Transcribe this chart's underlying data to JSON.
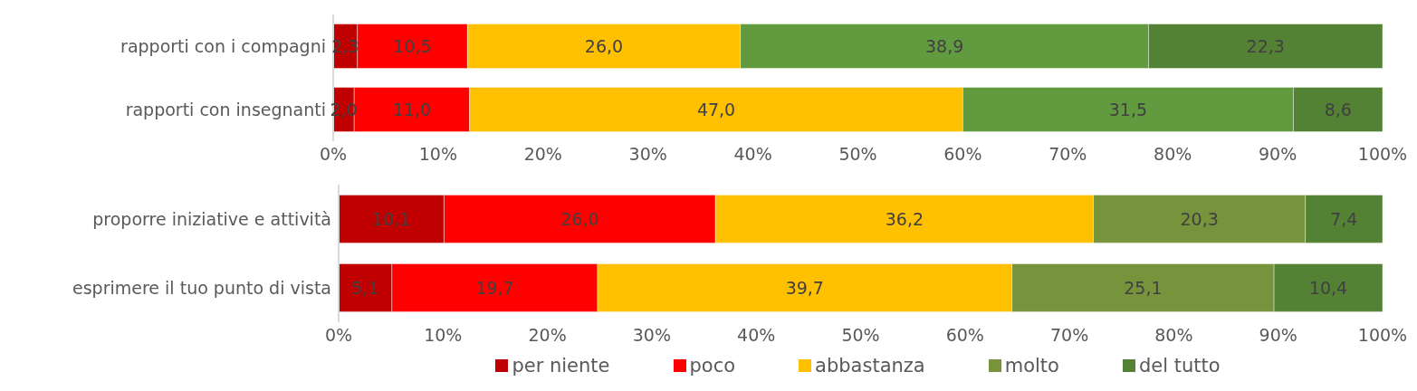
{
  "chart_data": [
    {
      "type": "bar",
      "orientation": "horizontal",
      "stacked": true,
      "categories": [
        "rapporti con i compagni",
        "rapporti con insegnanti"
      ],
      "series": [
        {
          "color": "#c00000",
          "values": [
            2.3,
            2.0
          ],
          "value_labels": [
            "2,3",
            "2,0"
          ]
        },
        {
          "color": "#ff0000",
          "values": [
            10.5,
            11.0
          ],
          "value_labels": [
            "10,5",
            "11,0"
          ]
        },
        {
          "color": "#ffc000",
          "values": [
            26.0,
            47.0
          ],
          "value_labels": [
            "26,0",
            "47,0"
          ]
        },
        {
          "color": "#629b3f",
          "values": [
            38.9,
            31.5
          ],
          "value_labels": [
            "38,9",
            "31,5"
          ]
        },
        {
          "color": "#548235",
          "values": [
            22.3,
            8.6
          ],
          "value_labels": [
            "22,3",
            "8,6"
          ]
        }
      ],
      "xlim": [
        0,
        100
      ],
      "xticks": [
        {
          "value": 0,
          "label": "0%"
        },
        {
          "value": 10,
          "label": "10%"
        },
        {
          "value": 20,
          "label": "20%"
        },
        {
          "value": 30,
          "label": "30%"
        },
        {
          "value": 40,
          "label": "40%"
        },
        {
          "value": 50,
          "label": "50%"
        },
        {
          "value": 60,
          "label": "60%"
        },
        {
          "value": 70,
          "label": "70%"
        },
        {
          "value": 80,
          "label": "80%"
        },
        {
          "value": 90,
          "label": "90%"
        },
        {
          "value": 100,
          "label": "100%"
        }
      ],
      "grid": false,
      "legend": false
    },
    {
      "type": "bar",
      "orientation": "horizontal",
      "stacked": true,
      "categories": [
        "proporre iniziative e attività",
        "esprimere il tuo punto di vista"
      ],
      "series": [
        {
          "name": "per niente",
          "color": "#c00000",
          "values": [
            10.1,
            5.1
          ],
          "value_labels": [
            "10,1",
            "5,1"
          ]
        },
        {
          "name": "poco",
          "color": "#ff0000",
          "values": [
            26.0,
            19.7
          ],
          "value_labels": [
            "26,0",
            "19,7"
          ]
        },
        {
          "name": "abbastanza",
          "color": "#ffc000",
          "values": [
            36.2,
            39.7
          ],
          "value_labels": [
            "36,2",
            "39,7"
          ]
        },
        {
          "name": "molto",
          "color": "#77933c",
          "values": [
            20.3,
            25.1
          ],
          "value_labels": [
            "20,3",
            "25,1"
          ]
        },
        {
          "name": "del tutto",
          "color": "#548235",
          "values": [
            7.4,
            10.4
          ],
          "value_labels": [
            "7,4",
            "10,4"
          ]
        }
      ],
      "xlim": [
        0,
        100
      ],
      "xticks": [
        {
          "value": 0,
          "label": "0%"
        },
        {
          "value": 10,
          "label": "10%"
        },
        {
          "value": 20,
          "label": "20%"
        },
        {
          "value": 30,
          "label": "30%"
        },
        {
          "value": 40,
          "label": "40%"
        },
        {
          "value": 50,
          "label": "50%"
        },
        {
          "value": 60,
          "label": "60%"
        },
        {
          "value": 70,
          "label": "70%"
        },
        {
          "value": 80,
          "label": "80%"
        },
        {
          "value": 90,
          "label": "90%"
        },
        {
          "value": 100,
          "label": "100%"
        }
      ],
      "grid": false,
      "legend": "bottom"
    }
  ]
}
